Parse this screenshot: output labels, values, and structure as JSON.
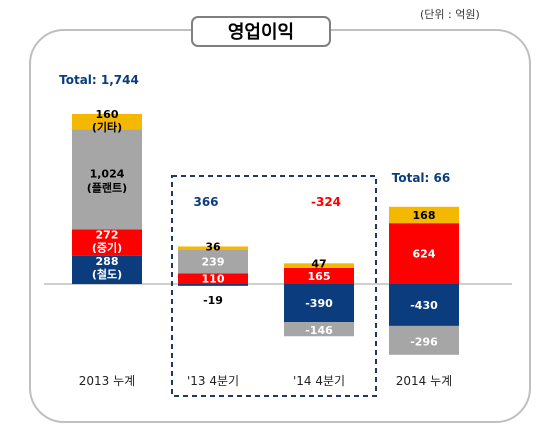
{
  "chart_data": {
    "type": "bar",
    "title": "영업이익",
    "unit_note": "(단위 : 억원)",
    "categories": [
      "2013 누계",
      "'13 4분기",
      "'14 4분기",
      "2014 누계"
    ],
    "series": [
      {
        "name": "기타",
        "values": [
          160,
          36,
          47,
          168
        ]
      },
      {
        "name": "플랜트",
        "values": [
          1024,
          239,
          -146,
          -296
        ]
      },
      {
        "name": "중기",
        "values": [
          272,
          110,
          165,
          624
        ]
      },
      {
        "name": "철도",
        "values": [
          288,
          -19,
          -390,
          -430
        ]
      }
    ],
    "series_labels": [
      "(기타)",
      "(플랜트)",
      "(중기)",
      "(철도)"
    ],
    "totals": [
      {
        "label": "Total: 1,744",
        "value": 1744
      },
      {
        "label": "366",
        "value": 366
      },
      {
        "label": "-324",
        "value": -324
      },
      {
        "label": "Total: 66",
        "value": 66
      }
    ],
    "colors": {
      "기타": "#F5B800",
      "플랜트": "#A6A6A6",
      "중기": "#FF0000",
      "철도": "#0B3D7E",
      "total_text": "#0B3D7E",
      "negative_total": "#FF0000",
      "highlight_border": "#1F3864"
    },
    "highlight": {
      "categories": [
        "'13 4분기",
        "'14 4분기"
      ],
      "style": "dashed box"
    }
  }
}
